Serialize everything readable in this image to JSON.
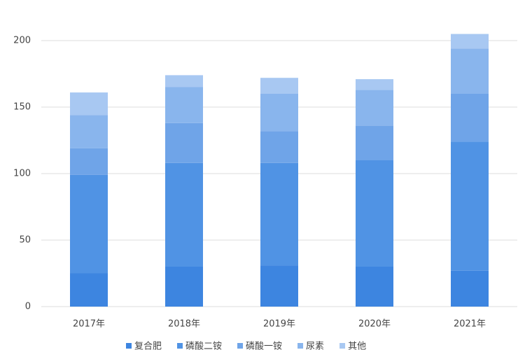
{
  "chart_data": {
    "type": "stacked_bar",
    "categories": [
      "2017年",
      "2018年",
      "2019年",
      "2020年",
      "2021年"
    ],
    "series": [
      {
        "name": "复合肥",
        "color": "#3d85e0",
        "values": [
          25,
          30,
          31,
          30,
          27
        ]
      },
      {
        "name": "磷酸二铵",
        "color": "#5093e4",
        "values": [
          74,
          78,
          77,
          80,
          97
        ]
      },
      {
        "name": "磷酸一铵",
        "color": "#6fa4e8",
        "values": [
          20,
          30,
          24,
          26,
          36
        ]
      },
      {
        "name": "尿素",
        "color": "#89b5ed",
        "values": [
          25,
          27,
          28,
          27,
          34
        ]
      },
      {
        "name": "其他",
        "color": "#a8c8f2",
        "values": [
          17,
          9,
          12,
          8,
          11
        ]
      }
    ],
    "ylim": [
      0,
      200
    ],
    "yticks": [
      0,
      50,
      100,
      150,
      200
    ],
    "grid": true,
    "legend": "bottom"
  }
}
